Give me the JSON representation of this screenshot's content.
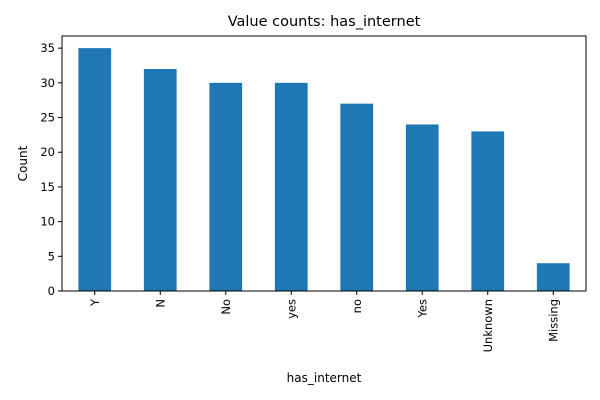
{
  "chart_data": {
    "type": "bar",
    "title": "Value counts: has_internet",
    "xlabel": "has_internet",
    "ylabel": "Count",
    "categories": [
      "Y",
      "N",
      "No",
      "yes",
      "no",
      "Yes",
      "Unknown",
      "Missing"
    ],
    "values": [
      35,
      32,
      30,
      30,
      27,
      24,
      23,
      4
    ],
    "ylim": [
      0,
      36.75
    ],
    "yticks": [
      0,
      5,
      10,
      15,
      20,
      25,
      30,
      35
    ],
    "grid": false,
    "legend": "none",
    "bar_color": "#1f77b4"
  }
}
